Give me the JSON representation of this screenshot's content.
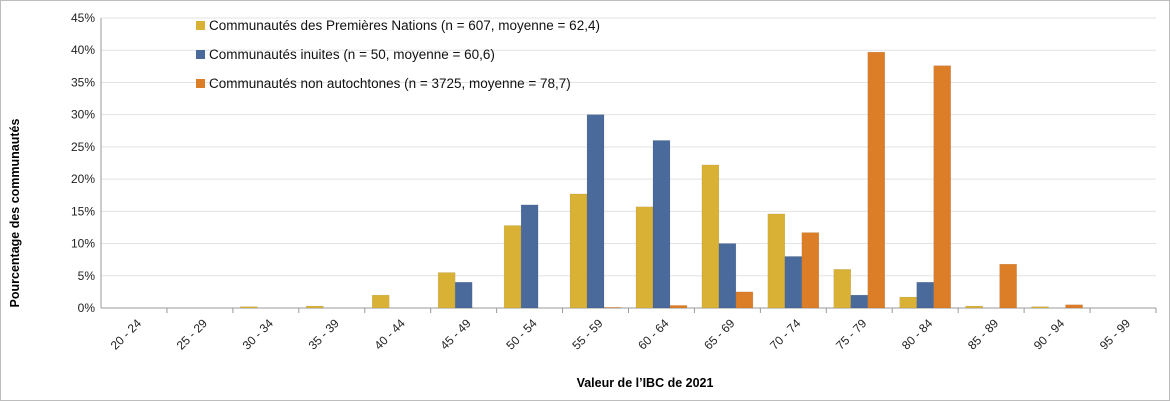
{
  "chart_data": {
    "type": "bar",
    "title": "",
    "xlabel": "Valeur de l’IBC de 2021",
    "ylabel": "Pourcentage des communautés",
    "ylim": [
      0,
      45
    ],
    "yticks": [
      "0%",
      "5%",
      "10%",
      "15%",
      "20%",
      "25%",
      "30%",
      "35%",
      "40%",
      "45%"
    ],
    "grid": true,
    "legend_position": "top-left",
    "categories": [
      "20 - 24",
      "25 - 29",
      "30 - 34",
      "35 - 39",
      "40 - 44",
      "45 - 49",
      "50 - 54",
      "55 - 59",
      "60 - 64",
      "65 - 69",
      "70 - 74",
      "75 - 79",
      "80 - 84",
      "85 - 89",
      "90 - 94",
      "95 - 99"
    ],
    "series": [
      {
        "name": "Communautés des Premières Nations (n = 607, moyenne = 62,4)",
        "color": "#D9B235",
        "values": [
          0,
          0,
          0.2,
          0.3,
          2.0,
          5.5,
          12.8,
          17.7,
          15.7,
          22.2,
          14.6,
          6.0,
          1.7,
          0.3,
          0.2,
          0
        ]
      },
      {
        "name": "Communautés inuites (n = 50, moyenne = 60,6)",
        "color": "#4A6A9C",
        "values": [
          0,
          0,
          0,
          0,
          0,
          4,
          16,
          30,
          26,
          10,
          8,
          2,
          4,
          0,
          0,
          0
        ]
      },
      {
        "name": "Communautés non autochtones (n = 3725, moyenne = 78,7)",
        "color": "#DC7D27",
        "values": [
          0,
          0,
          0,
          0,
          0,
          0,
          0,
          0.1,
          0.4,
          2.5,
          11.7,
          39.7,
          37.6,
          6.8,
          0.5,
          0
        ]
      }
    ]
  }
}
